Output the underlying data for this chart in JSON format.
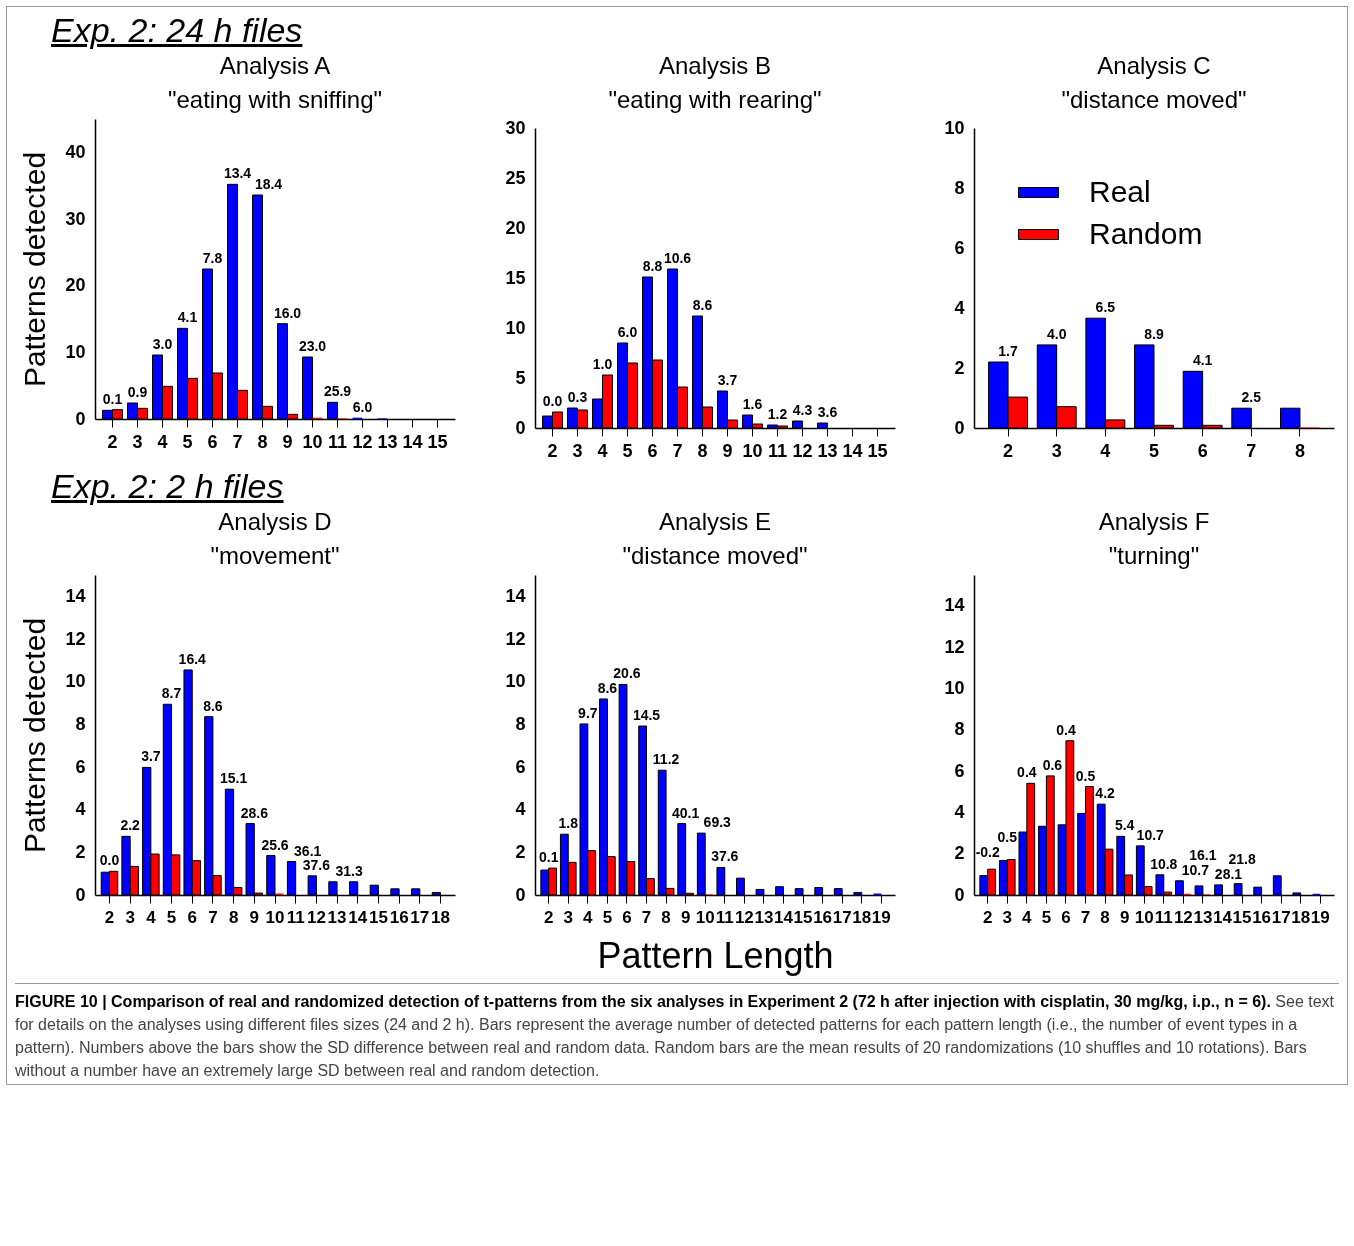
{
  "chart_data": [
    {
      "type": "bar",
      "title": "Analysis A",
      "subtitle": "\"eating with sniffing\"",
      "ylabel": "Patterns detected",
      "categories": [
        "2",
        "3",
        "4",
        "5",
        "6",
        "7",
        "8",
        "9",
        "10",
        "11",
        "12",
        "13",
        "14",
        "15"
      ],
      "ylim": [
        0,
        45
      ],
      "yticks": [
        0,
        10,
        20,
        30,
        40
      ],
      "series": [
        {
          "color": "#0000ff",
          "values": [
            1.3,
            2.4,
            9.6,
            13.6,
            22.5,
            35.2,
            33.6,
            14.3,
            9.3,
            2.5,
            0.2,
            0.1,
            0,
            0
          ]
        },
        {
          "color": "#ff0000",
          "values": [
            1.4,
            1.6,
            4.9,
            6.1,
            6.9,
            4.3,
            1.9,
            0.7,
            0.2,
            0.1,
            0,
            0,
            0,
            0
          ]
        }
      ],
      "annotations": [
        "Exp. 2: 24 h files",
        {
          "text": "0.1",
          "x": "2",
          "y": 1.4
        },
        {
          "text": "0.9",
          "x": "3",
          "y": 2.4
        },
        {
          "text": "3.0",
          "x": "4",
          "y": 9.6
        },
        {
          "text": "4.1",
          "x": "5",
          "y": 13.6
        },
        {
          "text": "7.8",
          "x": "6",
          "y": 22.5
        },
        {
          "text": "13.4",
          "x": "7",
          "y": 35.2
        },
        {
          "text": "18.4",
          "x": "8",
          "y": 33.6
        },
        {
          "text": "16.0",
          "x": "9",
          "y": 14.3
        },
        {
          "text": "23.0",
          "x": "10",
          "y": 9.3
        },
        {
          "text": "25.9",
          "x": "11",
          "y": 2.5
        },
        {
          "text": "6.0",
          "x": "12",
          "y": 0.2
        }
      ]
    },
    {
      "type": "bar",
      "title": "Analysis B",
      "subtitle": "\"eating with rearing\"",
      "categories": [
        "2",
        "3",
        "4",
        "5",
        "6",
        "7",
        "8",
        "9",
        "10",
        "11",
        "12",
        "13",
        "14",
        "15"
      ],
      "ylim": [
        0,
        30
      ],
      "yticks": [
        0,
        5,
        10,
        15,
        20,
        25,
        30
      ],
      "series": [
        {
          "color": "#0000ff",
          "values": [
            1.2,
            2.0,
            2.9,
            8.5,
            15.1,
            15.9,
            11.2,
            3.7,
            1.3,
            0.3,
            0.7,
            0.5,
            0,
            0
          ]
        },
        {
          "color": "#ff0000",
          "values": [
            1.6,
            1.8,
            5.3,
            6.5,
            6.8,
            4.1,
            2.1,
            0.8,
            0.4,
            0.2,
            0,
            0,
            0,
            0
          ]
        }
      ],
      "annotations": [
        {
          "text": "0.0",
          "x": "2",
          "y": 1.6
        },
        {
          "text": "0.3",
          "x": "3",
          "y": 2.0
        },
        {
          "text": "1.0",
          "x": "4",
          "y": 5.3
        },
        {
          "text": "6.0",
          "x": "5",
          "y": 8.5
        },
        {
          "text": "8.8",
          "x": "6",
          "y": 15.1
        },
        {
          "text": "10.6",
          "x": "7",
          "y": 15.9
        },
        {
          "text": "8.6",
          "x": "8",
          "y": 11.2
        },
        {
          "text": "3.7",
          "x": "9",
          "y": 3.7
        },
        {
          "text": "1.6",
          "x": "10",
          "y": 1.3
        },
        {
          "text": "1.2",
          "x": "11",
          "y": 0.3
        },
        {
          "text": "4.3",
          "x": "12",
          "y": 0.7
        },
        {
          "text": "3.6",
          "x": "13",
          "y": 0.5
        }
      ]
    },
    {
      "type": "bar",
      "title": "Analysis C",
      "subtitle": "\"distance moved\"",
      "categories": [
        "2",
        "3",
        "4",
        "5",
        "6",
        "7",
        "8"
      ],
      "ylim": [
        0,
        10
      ],
      "yticks": [
        0,
        2,
        4,
        6,
        8,
        10
      ],
      "legend": "top left",
      "series": [
        {
          "name": "Real",
          "color": "#0000ff",
          "values": [
            2.2,
            2.77,
            3.66,
            2.77,
            1.89,
            0.66,
            0.66
          ]
        },
        {
          "name": "Random",
          "color": "#ff0000",
          "values": [
            1.03,
            0.71,
            0.27,
            0.09,
            0.09,
            0,
            0.02
          ]
        }
      ],
      "annotations": [
        {
          "text": "1.7",
          "x": "2",
          "y": 2.2
        },
        {
          "text": "4.0",
          "x": "3",
          "y": 2.77
        },
        {
          "text": "6.5",
          "x": "4",
          "y": 3.66
        },
        {
          "text": "8.9",
          "x": "5",
          "y": 2.77
        },
        {
          "text": "4.1",
          "x": "6",
          "y": 1.89
        },
        {
          "text": "2.5",
          "x": "7",
          "y": 0.66
        }
      ]
    },
    {
      "type": "bar",
      "title": "Analysis D",
      "subtitle": "\"movement\"",
      "ylabel": "Patterns detected",
      "categories": [
        "2",
        "3",
        "4",
        "5",
        "6",
        "7",
        "8",
        "9",
        "10",
        "11",
        "12",
        "13",
        "14",
        "15",
        "16",
        "17",
        "18"
      ],
      "ylim": [
        0,
        15
      ],
      "yticks": [
        0,
        2,
        4,
        6,
        8,
        10,
        12,
        14
      ],
      "series": [
        {
          "color": "#0000ff",
          "values": [
            1.07,
            2.75,
            5.98,
            8.94,
            10.55,
            8.36,
            4.96,
            3.35,
            1.85,
            1.57,
            0.9,
            0.62,
            0.62,
            0.46,
            0.29,
            0.29,
            0.12
          ]
        },
        {
          "color": "#ff0000",
          "values": [
            1.11,
            1.34,
            1.92,
            1.88,
            1.61,
            0.91,
            0.35,
            0.09,
            0.07,
            0,
            0,
            0,
            0,
            0,
            0,
            0,
            0
          ]
        }
      ],
      "annotations": [
        "Exp. 2: 2 h files",
        {
          "text": "0.0",
          "x": "2",
          "y": 1.11
        },
        {
          "text": "2.2",
          "x": "3",
          "y": 2.75
        },
        {
          "text": "3.7",
          "x": "4",
          "y": 5.98
        },
        {
          "text": "8.7",
          "x": "5",
          "y": 8.94
        },
        {
          "text": "16.4",
          "x": "6",
          "y": 10.55
        },
        {
          "text": "8.6",
          "x": "7",
          "y": 8.36
        },
        {
          "text": "15.1",
          "x": "8",
          "y": 4.96
        },
        {
          "text": "28.6",
          "x": "9",
          "y": 3.35
        },
        {
          "text": "25.6",
          "x": "10",
          "y": 1.85
        },
        {
          "text": "36.1",
          "x": "11",
          "y": 1.57
        },
        {
          "text": "37.6",
          "x": "12",
          "y": 0.9
        },
        {
          "text": "31.3",
          "x": "13",
          "y": 0.62
        }
      ]
    },
    {
      "type": "bar",
      "title": "Analysis E",
      "subtitle": "\"distance moved\"",
      "xlabel": "Pattern Length",
      "categories": [
        "2",
        "3",
        "4",
        "5",
        "6",
        "7",
        "8",
        "9",
        "10",
        "11",
        "12",
        "13",
        "14",
        "15",
        "16",
        "17",
        "18",
        "19"
      ],
      "ylim": [
        0,
        15
      ],
      "yticks": [
        0,
        2,
        4,
        6,
        8,
        10,
        12,
        14
      ],
      "series": [
        {
          "color": "#0000ff",
          "values": [
            1.17,
            2.85,
            8.02,
            9.19,
            9.87,
            7.92,
            5.85,
            3.35,
            2.9,
            1.29,
            0.79,
            0.26,
            0.39,
            0.3,
            0.35,
            0.3,
            0.12,
            0.07
          ]
        },
        {
          "color": "#ff0000",
          "values": [
            1.26,
            1.53,
            2.08,
            1.8,
            1.57,
            0.77,
            0.31,
            0.08,
            0.03,
            0,
            0,
            0,
            0,
            0,
            0,
            0,
            0,
            0
          ]
        }
      ],
      "annotations": [
        {
          "text": "0.1",
          "x": "2",
          "y": 1.26
        },
        {
          "text": "1.8",
          "x": "3",
          "y": 2.85
        },
        {
          "text": "9.7",
          "x": "4",
          "y": 8.02
        },
        {
          "text": "8.6",
          "x": "5",
          "y": 9.19
        },
        {
          "text": "20.6",
          "x": "6",
          "y": 9.87
        },
        {
          "text": "14.5",
          "x": "7",
          "y": 7.92
        },
        {
          "text": "11.2",
          "x": "8",
          "y": 5.85
        },
        {
          "text": "40.1",
          "x": "9",
          "y": 3.35
        },
        {
          "text": "69.3",
          "x": "10",
          "y": 2.9
        },
        {
          "text": "37.6",
          "x": "11",
          "y": 1.29
        }
      ]
    },
    {
      "type": "bar",
      "title": "Analysis F",
      "subtitle": "\"turning\"",
      "categories": [
        "2",
        "3",
        "4",
        "5",
        "6",
        "7",
        "8",
        "9",
        "10",
        "11",
        "12",
        "13",
        "14",
        "15",
        "16",
        "17",
        "18",
        "19"
      ],
      "ylim": [
        0,
        15.5
      ],
      "yticks": [
        0,
        2,
        4,
        6,
        8,
        10,
        12,
        14
      ],
      "series": [
        {
          "color": "#0000ff",
          "values": [
            0.94,
            1.67,
            3.05,
            3.33,
            3.4,
            3.95,
            4.4,
            2.84,
            2.38,
            0.98,
            0.69,
            0.44,
            0.49,
            0.55,
            0.38,
            0.93,
            0.1,
            0.06
          ]
        },
        {
          "color": "#ff0000",
          "values": [
            1.25,
            1.72,
            5.41,
            5.77,
            7.47,
            5.25,
            2.22,
            0.97,
            0.41,
            0.14,
            0.06,
            0.03,
            0,
            0,
            0,
            0,
            0,
            0
          ]
        }
      ],
      "annotations": [
        {
          "text": "-0.2",
          "x": "2",
          "y": 1.25
        },
        {
          "text": "0.5",
          "x": "3",
          "y": 1.72
        },
        {
          "text": "0.4",
          "x": "4",
          "y": 5.41
        },
        {
          "text": "0.6",
          "x": "5",
          "y": 5.77
        },
        {
          "text": "0.4",
          "x": "6",
          "y": 7.47
        },
        {
          "text": "0.5",
          "x": "7",
          "y": 5.25
        },
        {
          "text": "4.2",
          "x": "8",
          "y": 4.4
        },
        {
          "text": "5.4",
          "x": "9",
          "y": 2.84
        },
        {
          "text": "10.7",
          "x": "10",
          "y": 2.38
        },
        {
          "text": "10.8",
          "x": "11",
          "y": 0.98
        },
        {
          "text": "10.7",
          "x": "12",
          "y": 0.69
        },
        {
          "text": "16.1",
          "x": "13",
          "y": 0.44
        },
        {
          "text": "28.1",
          "x": "14",
          "y": 0.49
        },
        {
          "text": "21.8",
          "x": "15",
          "y": 0.55
        },
        "FIGURE 10 | Comparison of real and randomized detection of t-patterns from the six analyses in Experiment 2 (72 h after injection with cisplatin, 30 mg/kg, i.p., n = 6).",
        "See text for details on the analyses using different files sizes (24 and 2 h). Bars represent the average number of detected patterns for each pattern length (i.e., the number of event types in a pattern). Numbers above the bars show the SD difference between real and random data. Random bars are the mean results of 20 randomizations (10 shuffles and 10 rotations). Bars without a number have an extremely large SD between real and random detection."
      ]
    }
  ]
}
